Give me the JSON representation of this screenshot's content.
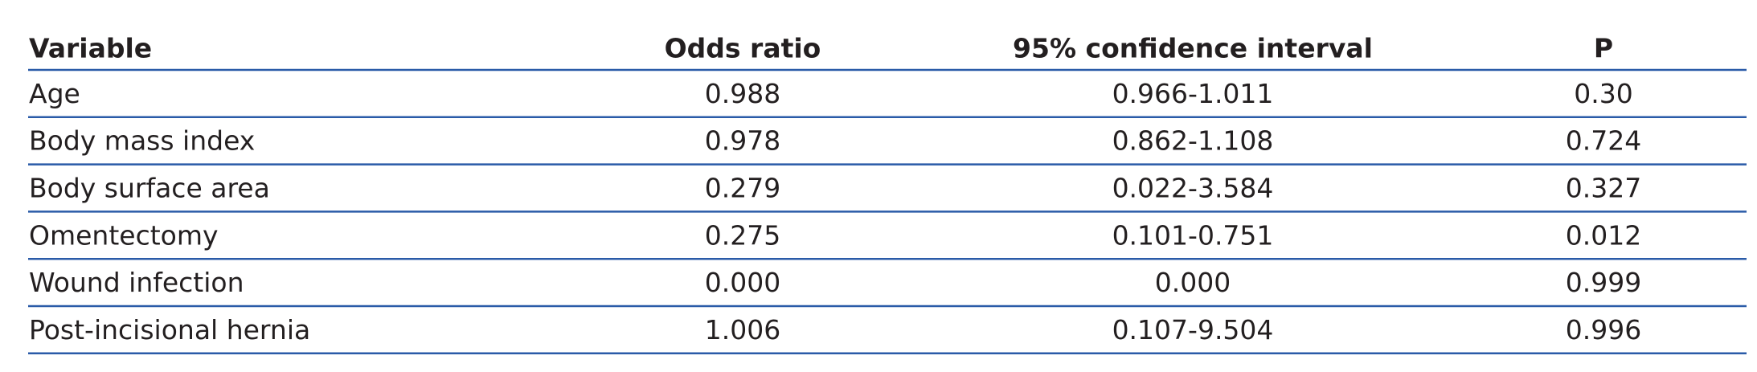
{
  "table": {
    "header": [
      "Variable",
      "Odds ratio",
      "95% confidence interval",
      "P"
    ],
    "rows": [
      [
        "Age",
        "0.988",
        "0.966-1.011",
        "0.30"
      ],
      [
        "Body mass index",
        "0.978",
        "0.862-1.108",
        "0.724"
      ],
      [
        "Body surface area",
        "0.279",
        "0.022-3.584",
        "0.327"
      ],
      [
        "Omentectomy",
        "0.275",
        "0.101-0.751",
        "0.012"
      ],
      [
        "Wound infection",
        "0.000",
        "0.000",
        "0.999"
      ],
      [
        "Post-incisional hernia",
        "1.006",
        "0.107-9.504",
        "0.996"
      ]
    ]
  }
}
